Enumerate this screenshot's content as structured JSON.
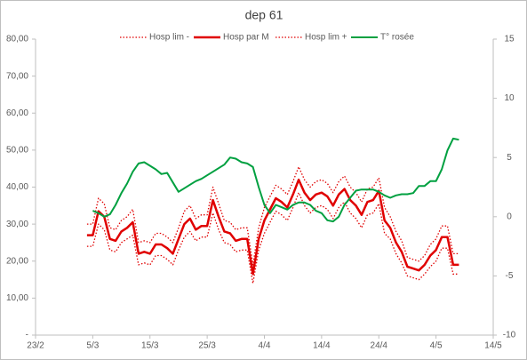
{
  "chart_data": {
    "type": "line",
    "title": "dep 61",
    "x": [
      "4/3",
      "5/3",
      "6/3",
      "7/3",
      "8/3",
      "9/3",
      "10/3",
      "11/3",
      "12/3",
      "13/3",
      "14/3",
      "15/3",
      "16/3",
      "17/3",
      "18/3",
      "19/3",
      "20/3",
      "21/3",
      "22/3",
      "23/3",
      "24/3",
      "25/3",
      "26/3",
      "27/3",
      "28/3",
      "29/3",
      "30/3",
      "31/3",
      "1/4",
      "2/4",
      "3/4",
      "4/4",
      "5/4",
      "6/4",
      "7/4",
      "8/4",
      "9/4",
      "10/4",
      "11/4",
      "12/4",
      "13/4",
      "14/4",
      "15/4",
      "16/4",
      "17/4",
      "18/4",
      "19/4",
      "20/4",
      "21/4",
      "22/4",
      "23/4",
      "24/4",
      "25/4",
      "26/4",
      "27/4",
      "28/4",
      "29/4",
      "30/4",
      "1/5",
      "2/5",
      "3/5",
      "4/5",
      "5/5",
      "6/5",
      "7/5",
      "8/5"
    ],
    "series": [
      {
        "name": "Hosp lim -",
        "color": "#e00000",
        "line_style": "dotted",
        "line_width": 1.3,
        "values": [
          24,
          24,
          30,
          28.5,
          23,
          22.5,
          25,
          26,
          27,
          19,
          19.5,
          19,
          21.5,
          21.5,
          20.5,
          19,
          23,
          26.5,
          28,
          25.5,
          26.5,
          26.5,
          33,
          28.5,
          25,
          24.5,
          22.5,
          23,
          23,
          14,
          23,
          27.5,
          30.5,
          33.5,
          32.5,
          31,
          34.5,
          38.5,
          35,
          33,
          34.5,
          35,
          34,
          31.5,
          34.5,
          36,
          33,
          31.5,
          29,
          32.5,
          33,
          35.5,
          27.5,
          26,
          22,
          19.5,
          16,
          15.5,
          15,
          16.5,
          18.5,
          20,
          23.5,
          23.5,
          16.5,
          16.5
        ]
      },
      {
        "name": "Hosp par M",
        "color": "#e00000",
        "line_style": "solid",
        "line_width": 2.5,
        "values": [
          27,
          27,
          33.5,
          32,
          26,
          25.5,
          28,
          29,
          30.5,
          22,
          22.5,
          22,
          24.5,
          24.5,
          23.5,
          22,
          26,
          30,
          31.5,
          28.5,
          29.5,
          29.5,
          36.5,
          32,
          28,
          27.5,
          25.5,
          26,
          26,
          16.5,
          26,
          31,
          34,
          37,
          36,
          34.5,
          38,
          42,
          38.5,
          36.5,
          38,
          38.5,
          37.5,
          35,
          38,
          39.5,
          36.5,
          35,
          32.5,
          36,
          36.5,
          39,
          31,
          29,
          25,
          22.5,
          18.5,
          18,
          17.5,
          19,
          21.5,
          23,
          26.5,
          26.5,
          19,
          19
        ]
      },
      {
        "name": "Hosp lim +",
        "color": "#e00000",
        "line_style": "dotted",
        "line_width": 1.3,
        "values": [
          30,
          30,
          37,
          35.5,
          29,
          28.5,
          31,
          32,
          34,
          25,
          25.5,
          25,
          27.5,
          27.5,
          26.5,
          25,
          29,
          33.5,
          35,
          31.5,
          32.5,
          32.5,
          40,
          35.5,
          31,
          30.5,
          28.5,
          29,
          29,
          19,
          29,
          34.5,
          37.5,
          40.5,
          39.5,
          38,
          41.5,
          45.5,
          42,
          40,
          41.5,
          42,
          41,
          38.5,
          41.5,
          43,
          40,
          38.5,
          36,
          39.5,
          40,
          42.5,
          34.5,
          32,
          28,
          25.5,
          21,
          20.5,
          20,
          21.5,
          24.5,
          26,
          29.5,
          29.5,
          22,
          22
        ]
      },
      {
        "name": "T° rosée",
        "color": "#00a040",
        "line_style": "solid",
        "line_width": 2,
        "axis": "y2",
        "values": [
          null,
          0.5,
          0.3,
          0.0,
          0.2,
          1.0,
          2.0,
          2.8,
          3.8,
          4.5,
          4.6,
          4.3,
          4.0,
          3.6,
          3.7,
          2.9,
          2.1,
          2.4,
          2.7,
          3.0,
          3.2,
          3.5,
          3.8,
          4.1,
          4.4,
          5.0,
          4.9,
          4.6,
          4.5,
          4.2,
          2.5,
          1.0,
          0.3,
          1.0,
          0.8,
          0.6,
          1.0,
          1.2,
          1.2,
          1.0,
          0.5,
          0.3,
          -0.3,
          -0.4,
          0.0,
          1.0,
          1.6,
          2.2,
          2.3,
          2.3,
          2.3,
          2.1,
          1.8,
          1.6,
          1.8,
          1.9,
          1.9,
          2.0,
          2.6,
          2.6,
          3.0,
          3.0,
          4.0,
          5.6,
          6.6,
          6.5
        ]
      }
    ],
    "xticks": [
      "23/2",
      "5/3",
      "15/3",
      "25/3",
      "4/4",
      "14/4",
      "24/4",
      "4/5",
      "14/5"
    ],
    "ylim": [
      0,
      80
    ],
    "yticks": [
      {
        "value": 0,
        "label": "-"
      },
      {
        "value": 10,
        "label": "10,00"
      },
      {
        "value": 20,
        "label": "20,00"
      },
      {
        "value": 30,
        "label": "30,00"
      },
      {
        "value": 40,
        "label": "40,00"
      },
      {
        "value": 50,
        "label": "50,00"
      },
      {
        "value": 60,
        "label": "60,00"
      },
      {
        "value": 70,
        "label": "70,00"
      },
      {
        "value": 80,
        "label": "80,00"
      }
    ],
    "y2lim": [
      -10,
      15
    ],
    "y2ticks": [
      -10,
      -5,
      0,
      5,
      10,
      15
    ],
    "grid": false,
    "legend": "top"
  }
}
